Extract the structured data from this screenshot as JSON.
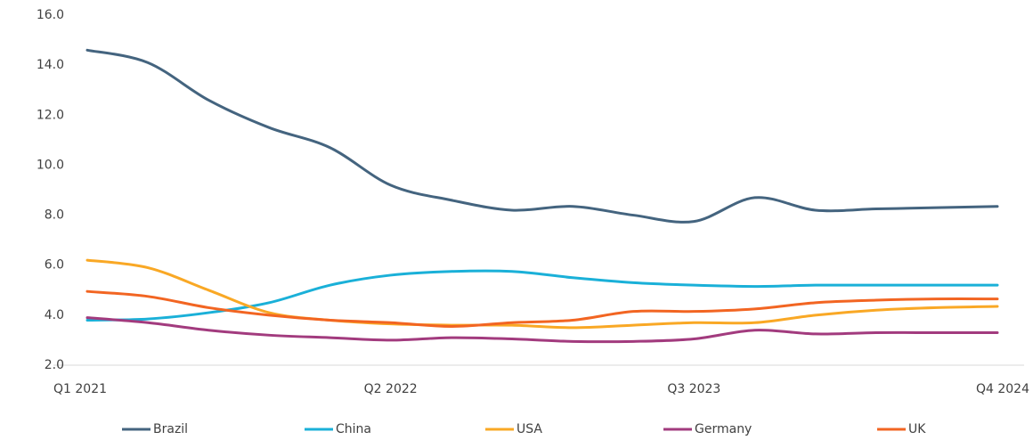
{
  "chart_data": {
    "type": "line",
    "categories": [
      "Q1 2021",
      null,
      null,
      null,
      null,
      "Q2 2022",
      null,
      null,
      null,
      null,
      "Q3 2023",
      null,
      null,
      null,
      null,
      "Q4 2024"
    ],
    "series": [
      {
        "name": "Brazil",
        "color": "#44647f",
        "values": [
          14.6,
          14.1,
          12.6,
          11.5,
          10.7,
          9.2,
          8.6,
          8.2,
          8.35,
          8.0,
          7.75,
          8.7,
          8.2,
          8.25,
          8.3,
          8.35
        ]
      },
      {
        "name": "China",
        "color": "#1ab0d8",
        "values": [
          3.8,
          3.85,
          4.1,
          4.5,
          5.2,
          5.6,
          5.75,
          5.75,
          5.5,
          5.3,
          5.2,
          5.15,
          5.2,
          5.2,
          5.2,
          5.2
        ]
      },
      {
        "name": "USA",
        "color": "#f9a825",
        "values": [
          6.2,
          5.9,
          5.0,
          4.1,
          3.8,
          3.65,
          3.6,
          3.6,
          3.5,
          3.6,
          3.7,
          3.7,
          4.0,
          4.2,
          4.3,
          4.35
        ]
      },
      {
        "name": "Germany",
        "color": "#a23b7e",
        "values": [
          3.9,
          3.7,
          3.4,
          3.2,
          3.1,
          3.0,
          3.1,
          3.05,
          2.95,
          2.95,
          3.05,
          3.4,
          3.25,
          3.3,
          3.3,
          3.3
        ]
      },
      {
        "name": "UK",
        "color": "#f26522",
        "values": [
          4.95,
          4.75,
          4.3,
          4.0,
          3.8,
          3.7,
          3.55,
          3.7,
          3.8,
          4.15,
          4.15,
          4.25,
          4.5,
          4.6,
          4.65,
          4.65
        ]
      }
    ],
    "ylim": [
      2.0,
      16.0
    ],
    "yticks": [
      {
        "value": 2,
        "label": "2.0"
      },
      {
        "value": 4,
        "label": "4.0"
      },
      {
        "value": 6,
        "label": "6.0"
      },
      {
        "value": 8,
        "label": "8.0"
      },
      {
        "value": 10,
        "label": "10.0"
      },
      {
        "value": 12,
        "label": "12.0"
      },
      {
        "value": 14,
        "label": "14.0"
      },
      {
        "value": 16,
        "label": "16.0"
      }
    ],
    "grid": false,
    "legend": "bottom"
  }
}
